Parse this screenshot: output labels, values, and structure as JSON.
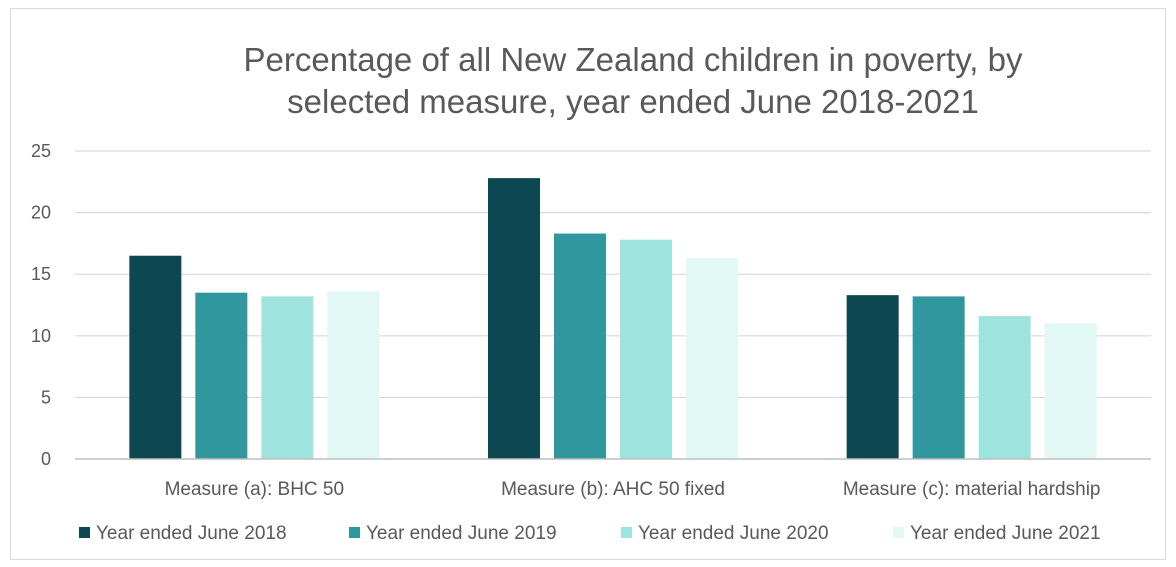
{
  "chart_data": {
    "type": "bar",
    "title_lines": [
      "Percentage of all New Zealand children in poverty, by",
      "selected measure, year ended June 2018-2021"
    ],
    "categories": [
      "Measure (a): BHC 50",
      "Measure (b): AHC 50 fixed",
      "Measure (c): material hardship"
    ],
    "series": [
      {
        "name": "Year ended June 2018",
        "color": "#0d4751",
        "values": [
          16.5,
          22.8,
          13.3
        ]
      },
      {
        "name": "Year ended June 2019",
        "color": "#31979f",
        "values": [
          13.5,
          18.3,
          13.2
        ]
      },
      {
        "name": "Year ended June 2020",
        "color": "#9ee3de",
        "values": [
          13.2,
          17.8,
          11.6
        ]
      },
      {
        "name": "Year ended June 2021",
        "color": "#e1f8f4",
        "values": [
          13.6,
          16.3,
          11.0
        ]
      }
    ],
    "ylim": [
      0,
      25
    ],
    "yticks": [
      0,
      5,
      10,
      15,
      20,
      25
    ],
    "xlabel": "",
    "ylabel": "",
    "grid": true,
    "legend": "bottom"
  }
}
